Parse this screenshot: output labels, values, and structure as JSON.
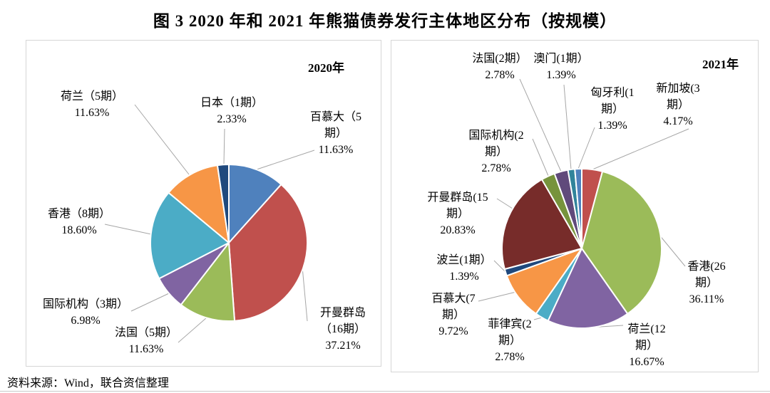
{
  "page": {
    "title": "图 3  2020 年和 2021 年熊猫债券发行主体地区分布（按规模）",
    "source_note": "资料来源：Wind，联合资信整理"
  },
  "chart_data": [
    {
      "type": "pie",
      "panel_label": "2020年",
      "unit": "percent-of-issuance-scale",
      "direction": "clockwise-from-top",
      "slices": [
        {
          "name": "百慕大（5期）",
          "value": 11.63,
          "color": "#4F81BD",
          "label_lines": [
            "百慕大（5",
            "期）",
            "11.63%"
          ]
        },
        {
          "name": "开曼群岛（16期）",
          "value": 37.21,
          "color": "#C0504D",
          "label_lines": [
            "开曼群岛",
            "（16期）",
            "37.21%"
          ]
        },
        {
          "name": "法国（5期）",
          "value": 11.63,
          "color": "#9BBB59",
          "label_lines": [
            "法国（5期）",
            "11.63%"
          ]
        },
        {
          "name": "国际机构（3期）",
          "value": 6.98,
          "color": "#8064A2",
          "label_lines": [
            "国际机构（3期）",
            "6.98%"
          ]
        },
        {
          "name": "香港（8期）",
          "value": 18.6,
          "color": "#4BACC6",
          "label_lines": [
            "香港（8期）",
            "18.60%"
          ]
        },
        {
          "name": "荷兰（5期）",
          "value": 11.63,
          "color": "#F79646",
          "label_lines": [
            "荷兰（5期）",
            "11.63%"
          ]
        },
        {
          "name": "日本（1期）",
          "value": 2.33,
          "color": "#1F497D",
          "label_lines": [
            "日本（1期）",
            "2.33%"
          ]
        }
      ]
    },
    {
      "type": "pie",
      "panel_label": "2021年",
      "unit": "percent-of-issuance-scale",
      "direction": "clockwise-from-top",
      "slices": [
        {
          "name": "新加坡(3期）",
          "value": 4.17,
          "color": "#C0504D",
          "label_lines": [
            "新加坡(3",
            "期）",
            "4.17%"
          ]
        },
        {
          "name": "香港(26期）",
          "value": 36.11,
          "color": "#9BBB59",
          "label_lines": [
            "香港(26",
            "期）",
            "36.11%"
          ]
        },
        {
          "name": "荷兰(12期）",
          "value": 16.67,
          "color": "#8064A2",
          "label_lines": [
            "荷兰(12",
            "期）",
            "16.67%"
          ]
        },
        {
          "name": "菲律宾(2期）",
          "value": 2.78,
          "color": "#4BACC6",
          "label_lines": [
            "菲律宾(2",
            "期）",
            "2.78%"
          ]
        },
        {
          "name": "百慕大(7期）",
          "value": 9.72,
          "color": "#F79646",
          "label_lines": [
            "百慕大(7",
            "期）",
            "9.72%"
          ]
        },
        {
          "name": "波兰(1期）",
          "value": 1.39,
          "color": "#1F497D",
          "label_lines": [
            "波兰(1期）",
            "1.39%"
          ]
        },
        {
          "name": "开曼群岛(15期）",
          "value": 20.83,
          "color": "#772C2A",
          "label_lines": [
            "开曼群岛(15",
            "期）",
            "20.83%"
          ]
        },
        {
          "name": "国际机构(2期）",
          "value": 2.78,
          "color": "#77933C",
          "label_lines": [
            "国际机构(2",
            "期）",
            "2.78%"
          ]
        },
        {
          "name": "法国(2期）",
          "value": 2.78,
          "color": "#604A7B",
          "label_lines": [
            "法国(2期）",
            "2.78%"
          ]
        },
        {
          "name": "澳门(1期）",
          "value": 1.39,
          "color": "#31849B",
          "label_lines": [
            "澳门(1期）",
            "1.39%"
          ]
        },
        {
          "name": "匈牙利(1期）",
          "value": 1.39,
          "color": "#4F81BD",
          "label_lines": [
            "匈牙利(1",
            "期）",
            "1.39%"
          ]
        }
      ]
    }
  ]
}
